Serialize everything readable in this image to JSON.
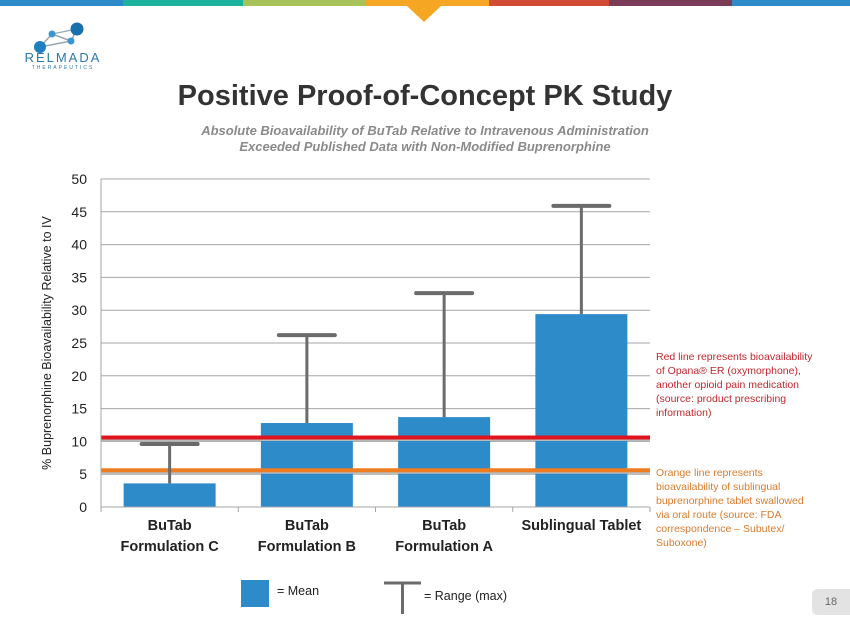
{
  "brand": {
    "name": "RELMADA",
    "tagline": "THERAPEUTICS",
    "colors": [
      "#2e8bc9",
      "#1bb39d",
      "#a8c25a",
      "#f5a623",
      "#d24b35",
      "#7a3c57",
      "#2e8bc9"
    ]
  },
  "header": {
    "title": "Positive Proof-of-Concept PK Study",
    "subtitle_line1": "Absolute Bioavailability of BuTab Relative to Intravenous Administration",
    "subtitle_line2": "Exceeded Published Data with Non-Modified Buprenorphine"
  },
  "chart_data": {
    "type": "bar",
    "title": "",
    "xlabel": "",
    "ylabel": "% Buprenorphine Bioavailability Relative to IV",
    "ylim": [
      0,
      50
    ],
    "yticks": [
      0,
      5,
      10,
      15,
      20,
      25,
      30,
      35,
      40,
      45,
      50
    ],
    "ytick_labels": [
      "0",
      "5",
      "10",
      "15",
      "20",
      "25",
      "30",
      "35",
      "40",
      "45",
      "50"
    ],
    "grid": true,
    "categories": [
      {
        "line1": "BuTab",
        "line2": "Formulation C"
      },
      {
        "line1": "BuTab",
        "line2": "Formulation B"
      },
      {
        "line1": "BuTab",
        "line2": "Formulation A"
      },
      {
        "line1": "Sublingual Tablet",
        "line2": ""
      }
    ],
    "series": [
      {
        "name": "Mean",
        "values": [
          3.6,
          12.8,
          13.7,
          29.4
        ],
        "color": "#2e8bc9"
      },
      {
        "name": "Range (max)",
        "values": [
          9.6,
          26.2,
          32.6,
          45.9
        ],
        "color": "#6b6b6b"
      }
    ],
    "reference_lines": [
      {
        "name": "Opana ER",
        "value": 10.6,
        "color": "#e0141c"
      },
      {
        "name": "Oral sublingual buprenorphine",
        "value": 5.6,
        "color": "#ee7d22"
      }
    ]
  },
  "annotations": {
    "red_note": "Red line represents bioavailability of Opana® ER (oxymorphone), another opioid pain medication (source: product prescribing information)",
    "orange_note": "Orange line represents bioavailability of sublingual buprenorphine tablet swallowed via oral route (source: FDA correspondence – Subutex/ Suboxone)"
  },
  "legend": {
    "mean_label": "= Mean",
    "range_label": "= Range (max)"
  },
  "footer": {
    "page_number": "18"
  }
}
